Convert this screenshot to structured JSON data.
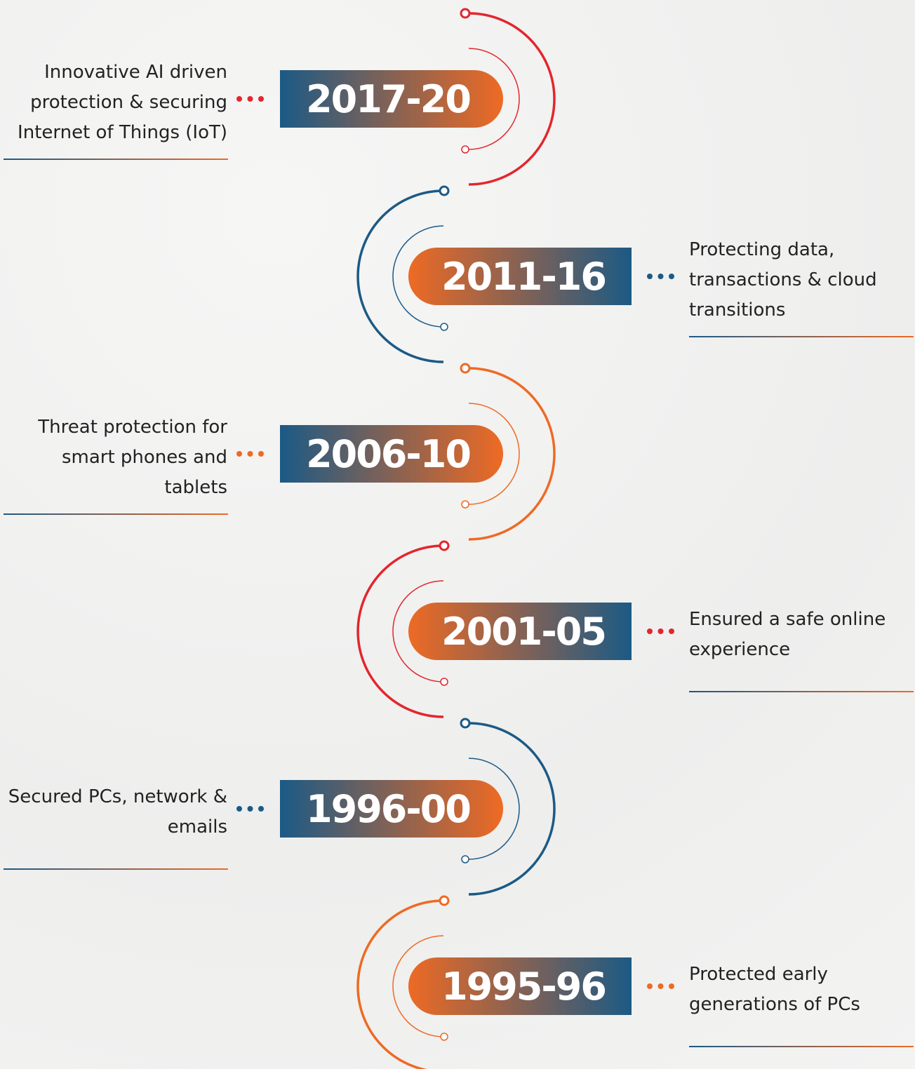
{
  "timeline": {
    "items": [
      {
        "year": "2017-20",
        "description": "Innovative AI driven protection & securing Internet of Things (IoT)",
        "color": "#e3262d"
      },
      {
        "year": "2011-16",
        "description": "Protecting data, transactions & cloud transitions",
        "color": "#1b5a85"
      },
      {
        "year": "2006-10",
        "description": "Threat protection for smart phones and tablets",
        "color": "#ee6a24"
      },
      {
        "year": "2001-05",
        "description": "Ensured a safe online experience",
        "color": "#e3262d"
      },
      {
        "year": "1996-00",
        "description": "Secured PCs, network & emails",
        "color": "#1b5a85"
      },
      {
        "year": "1995-96",
        "description": "Protected early generations of PCs",
        "color": "#ee6a24"
      }
    ]
  }
}
